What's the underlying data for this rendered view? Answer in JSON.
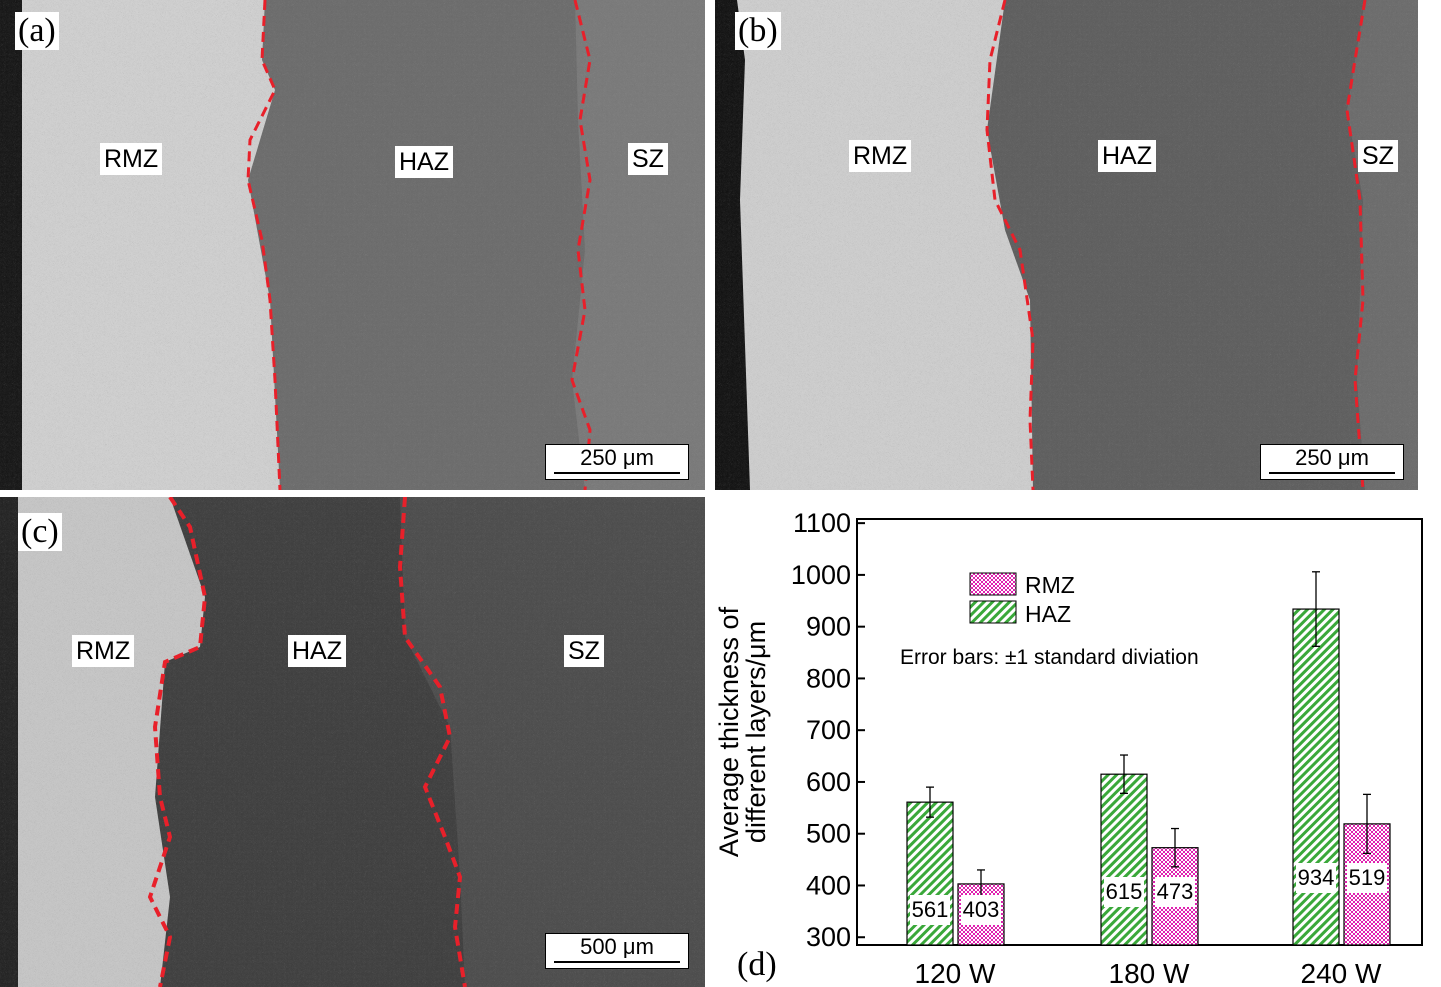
{
  "panels": [
    {
      "label": "(a)",
      "zones": [
        "RMZ",
        "HAZ",
        "SZ"
      ],
      "scale_bar": "250 μm"
    },
    {
      "label": "(b)",
      "zones": [
        "RMZ",
        "HAZ",
        "SZ"
      ],
      "scale_bar": "250 μm"
    },
    {
      "label": "(c)",
      "zones": [
        "RMZ",
        "HAZ",
        "SZ"
      ],
      "scale_bar": "500 μm"
    }
  ],
  "colors": {
    "boundary": "#e8202a",
    "rmz": "#e020b0",
    "haz": "#3aa83a"
  },
  "chart_data": {
    "type": "bar",
    "panel_label": "(d)",
    "categories": [
      "120 W",
      "180 W",
      "240 W"
    ],
    "series": [
      {
        "name": "HAZ",
        "values": [
          561,
          615,
          934
        ],
        "error": [
          29,
          37,
          72
        ],
        "data_labels": [
          "561",
          "615",
          "934"
        ]
      },
      {
        "name": "RMZ",
        "values": [
          403,
          473,
          519
        ],
        "error": [
          27,
          37,
          57
        ],
        "data_labels": [
          "403",
          "473",
          "519"
        ]
      }
    ],
    "legend": [
      "RMZ",
      "HAZ"
    ],
    "legend_placement": "top-left",
    "annotation": "Error bars: ±1 standard diviation",
    "ylabel_lines": [
      "Average thickness of",
      "different layers/μm"
    ],
    "yticks": [
      "300",
      "400",
      "500",
      "600",
      "700",
      "800",
      "900",
      "1000",
      "1100"
    ],
    "ylim": [
      285,
      1108
    ],
    "grid": false
  }
}
